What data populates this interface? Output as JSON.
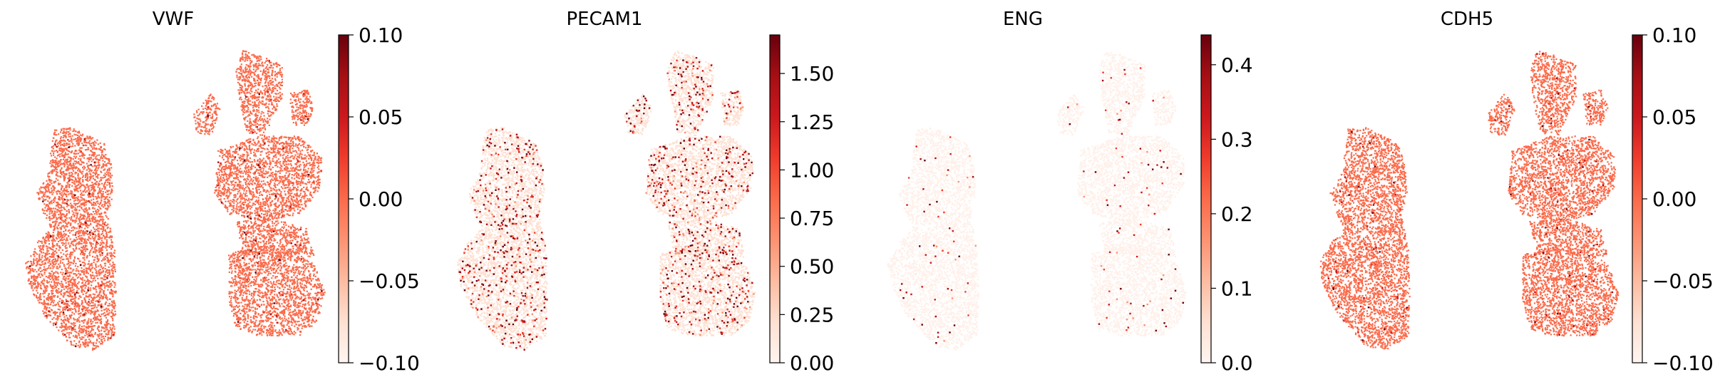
{
  "figure_title": "",
  "chart_data": [
    {
      "type": "scatter",
      "title": "VWF",
      "xlabel": "",
      "ylabel": "",
      "axes": "off",
      "colormap": "Reds",
      "point_color": "#fb6a4a",
      "uniform_value": 0.0,
      "colorbar": {
        "ticks": [
          -0.1,
          -0.05,
          0.0,
          0.05,
          0.1
        ],
        "tick_labels": [
          "−0.10",
          "−0.05",
          "0.00",
          "0.05",
          "0.10"
        ],
        "min": -0.1,
        "max": 0.1
      }
    },
    {
      "type": "scatter",
      "title": "PECAM1",
      "xlabel": "",
      "ylabel": "",
      "axes": "off",
      "colormap": "Reds",
      "point_color": "#fee0d2",
      "colorbar": {
        "ticks": [
          0.0,
          0.25,
          0.5,
          0.75,
          1.0,
          1.25,
          1.5
        ],
        "tick_labels": [
          "0.00",
          "0.25",
          "0.50",
          "0.75",
          "1.00",
          "1.25",
          "1.50"
        ],
        "min": 0.0,
        "max": 1.7
      }
    },
    {
      "type": "scatter",
      "title": "ENG",
      "xlabel": "",
      "ylabel": "",
      "axes": "off",
      "colormap": "Reds",
      "point_color": "#fff0ea",
      "colorbar": {
        "ticks": [
          0.0,
          0.1,
          0.2,
          0.3,
          0.4
        ],
        "tick_labels": [
          "0.0",
          "0.1",
          "0.2",
          "0.3",
          "0.4"
        ],
        "min": 0.0,
        "max": 0.44
      }
    },
    {
      "type": "scatter",
      "title": "CDH5",
      "xlabel": "",
      "ylabel": "",
      "axes": "off",
      "colormap": "Reds",
      "point_color": "#fb6a4a",
      "uniform_value": 0.0,
      "colorbar": {
        "ticks": [
          -0.1,
          -0.05,
          0.0,
          0.05,
          0.1
        ],
        "tick_labels": [
          "−0.10",
          "−0.05",
          "0.00",
          "0.05",
          "0.10"
        ],
        "min": -0.1,
        "max": 0.1
      }
    }
  ]
}
